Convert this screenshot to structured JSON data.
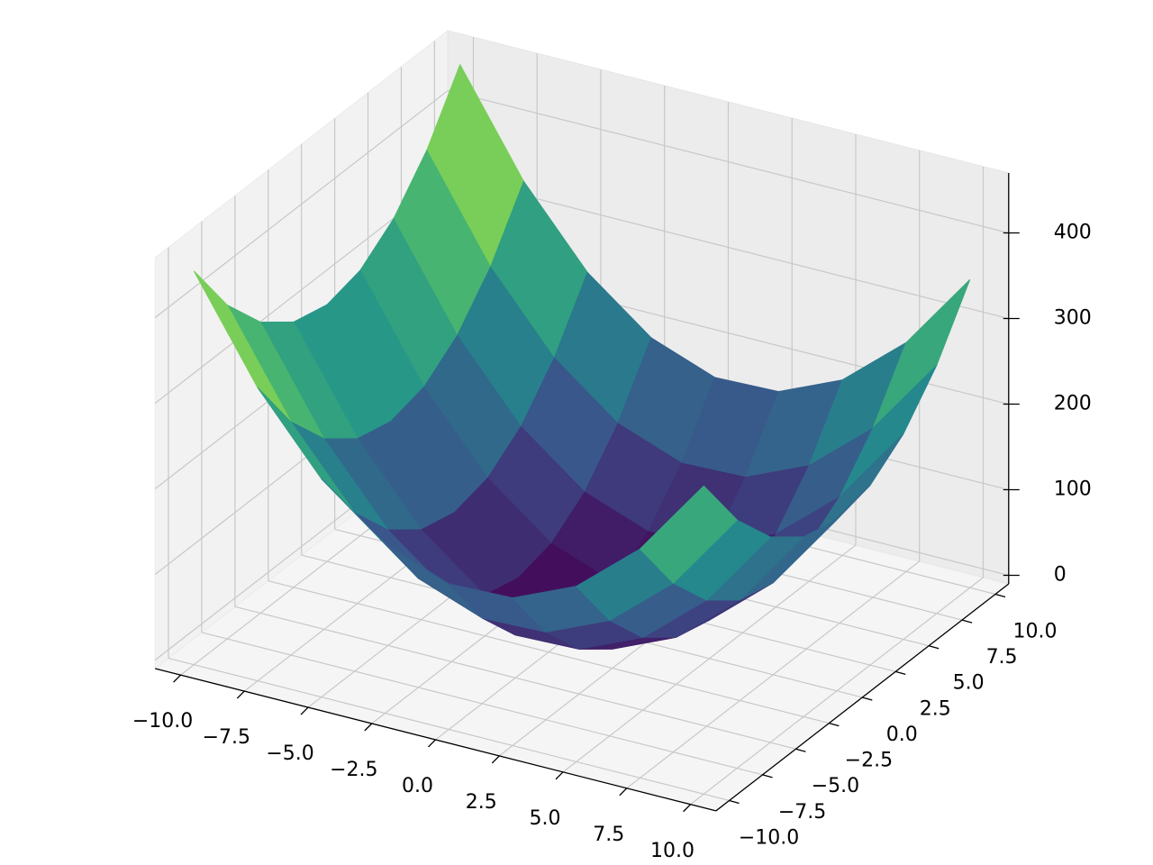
{
  "chart_data": {
    "type": "surface",
    "x": [
      -10,
      -7.5,
      -5,
      -2.5,
      0,
      2.5,
      5,
      7.5,
      10
    ],
    "y": [
      -10,
      -7.5,
      -5,
      -2.5,
      0,
      2.5,
      5,
      7.5,
      10
    ],
    "z": [
      [
        450,
        332.5,
        245,
        187.5,
        160,
        162.5,
        195,
        257.5,
        350
      ],
      [
        380,
        262.5,
        175,
        117.5,
        90,
        92.5,
        125,
        187.5,
        280
      ],
      [
        330,
        212.5,
        125,
        67.5,
        40,
        42.5,
        75,
        137.5,
        230
      ],
      [
        300,
        182.5,
        95,
        37.5,
        10,
        12.5,
        45,
        107.5,
        200
      ],
      [
        290,
        172.5,
        85,
        27.5,
        0,
        2.5,
        35,
        97.5,
        190
      ],
      [
        300,
        182.5,
        95,
        37.5,
        10,
        12.5,
        45,
        107.5,
        200
      ],
      [
        330,
        212.5,
        125,
        67.5,
        40,
        42.5,
        75,
        137.5,
        230
      ],
      [
        380,
        262.5,
        175,
        117.5,
        90,
        92.5,
        125,
        187.5,
        280
      ],
      [
        450,
        332.5,
        245,
        187.5,
        160,
        162.5,
        195,
        257.5,
        350
      ]
    ],
    "colormap": "viridis",
    "xlim": [
      -11,
      11
    ],
    "ylim": [
      -11,
      11
    ],
    "zlim": [
      -10,
      470
    ],
    "xticks": [
      {
        "value": -10,
        "label": "−10.0"
      },
      {
        "value": -7.5,
        "label": "−7.5"
      },
      {
        "value": -5,
        "label": "−5.0"
      },
      {
        "value": -2.5,
        "label": "−2.5"
      },
      {
        "value": 0,
        "label": "0.0"
      },
      {
        "value": 2.5,
        "label": "2.5"
      },
      {
        "value": 5,
        "label": "5.0"
      },
      {
        "value": 7.5,
        "label": "7.5"
      },
      {
        "value": 10,
        "label": "10.0"
      }
    ],
    "yticks": [
      {
        "value": -10,
        "label": "−10.0"
      },
      {
        "value": -7.5,
        "label": "−7.5"
      },
      {
        "value": -5,
        "label": "−5.0"
      },
      {
        "value": -2.5,
        "label": "−2.5"
      },
      {
        "value": 0,
        "label": "0.0"
      },
      {
        "value": 2.5,
        "label": "2.5"
      },
      {
        "value": 5,
        "label": "5.0"
      },
      {
        "value": 7.5,
        "label": "7.5"
      },
      {
        "value": 10,
        "label": "10.0"
      }
    ],
    "zticks": [
      0,
      100,
      200,
      300,
      400
    ],
    "grid": true
  }
}
